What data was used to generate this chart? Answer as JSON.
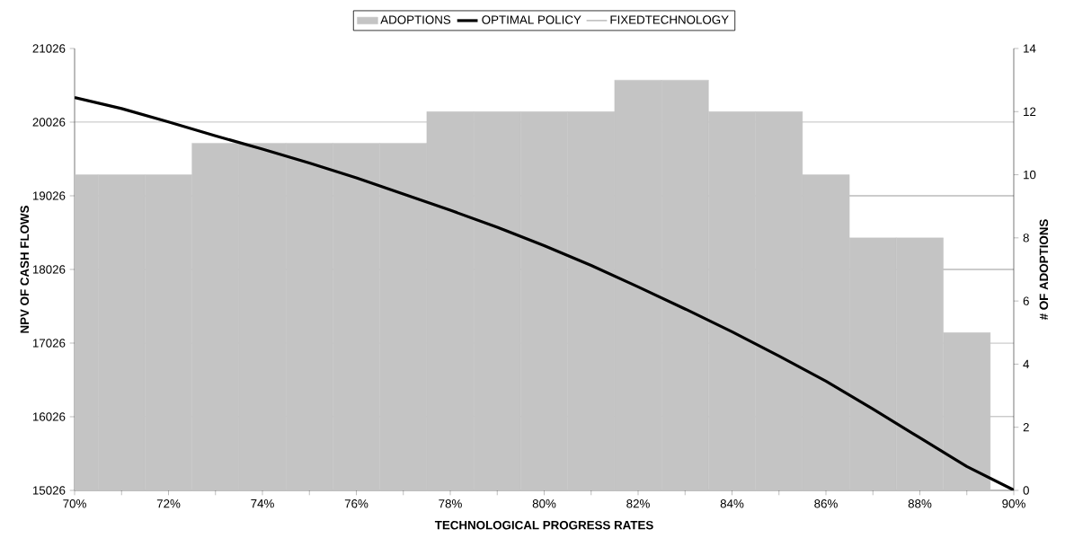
{
  "chart_data": {
    "type": "bar",
    "xlabel": "TECHNOLOGICAL PROGRESS RATES",
    "ylabel": "NPV OF CASH FLOWS",
    "y2label": "# OF ADOPTIONS",
    "x": [
      70,
      71,
      72,
      73,
      74,
      75,
      76,
      77,
      78,
      79,
      80,
      81,
      82,
      83,
      84,
      85,
      86,
      87,
      88,
      89,
      90
    ],
    "series": [
      {
        "name": "ADOPTIONS",
        "axis": "y2",
        "color": "#c4c4c4",
        "values": [
          10,
          10,
          10,
          11,
          11,
          11,
          11,
          11,
          12,
          12,
          12,
          12,
          13,
          13,
          12,
          12,
          10,
          8,
          8,
          5,
          0
        ]
      },
      {
        "name": "OPTIMAL POLICY",
        "type": "line",
        "color": "#000000",
        "values": [
          20360,
          20210,
          20030,
          19840,
          19660,
          19470,
          19270,
          19050,
          18830,
          18600,
          18350,
          18080,
          17790,
          17490,
          17180,
          16850,
          16510,
          16130,
          15740,
          15350,
          15030
        ]
      },
      {
        "name": "FIXEDTECHNOLOGY",
        "type": "line",
        "color": "#808080",
        "values": [
          null,
          null,
          null,
          null,
          null,
          null,
          null,
          null,
          null,
          null,
          null,
          null,
          null,
          null,
          null,
          null,
          null,
          null,
          null,
          null,
          null
        ]
      }
    ],
    "xlim": [
      70,
      90
    ],
    "xticks": [
      {
        "value": 70,
        "label": "70%"
      },
      {
        "value": 71,
        "label": null
      },
      {
        "value": 72,
        "label": "72%"
      },
      {
        "value": 73,
        "label": null
      },
      {
        "value": 74,
        "label": "74%"
      },
      {
        "value": 75,
        "label": null
      },
      {
        "value": 76,
        "label": "76%"
      },
      {
        "value": 77,
        "label": null
      },
      {
        "value": 78,
        "label": "78%"
      },
      {
        "value": 79,
        "label": null
      },
      {
        "value": 80,
        "label": "80%"
      },
      {
        "value": 81,
        "label": null
      },
      {
        "value": 82,
        "label": "82%"
      },
      {
        "value": 83,
        "label": null
      },
      {
        "value": 84,
        "label": "84%"
      },
      {
        "value": 85,
        "label": null
      },
      {
        "value": 86,
        "label": "86%"
      },
      {
        "value": 87,
        "label": null
      },
      {
        "value": 88,
        "label": "88%"
      },
      {
        "value": 89,
        "label": null
      },
      {
        "value": 90,
        "label": "90%"
      }
    ],
    "ylim": [
      15026,
      21026
    ],
    "yticks": [
      15026,
      16026,
      17026,
      18026,
      19026,
      20026,
      21026
    ],
    "y2lim": [
      0,
      14
    ],
    "y2ticks": [
      0,
      2,
      4,
      6,
      8,
      10,
      12,
      14
    ],
    "grid": "y",
    "legend": "top"
  }
}
